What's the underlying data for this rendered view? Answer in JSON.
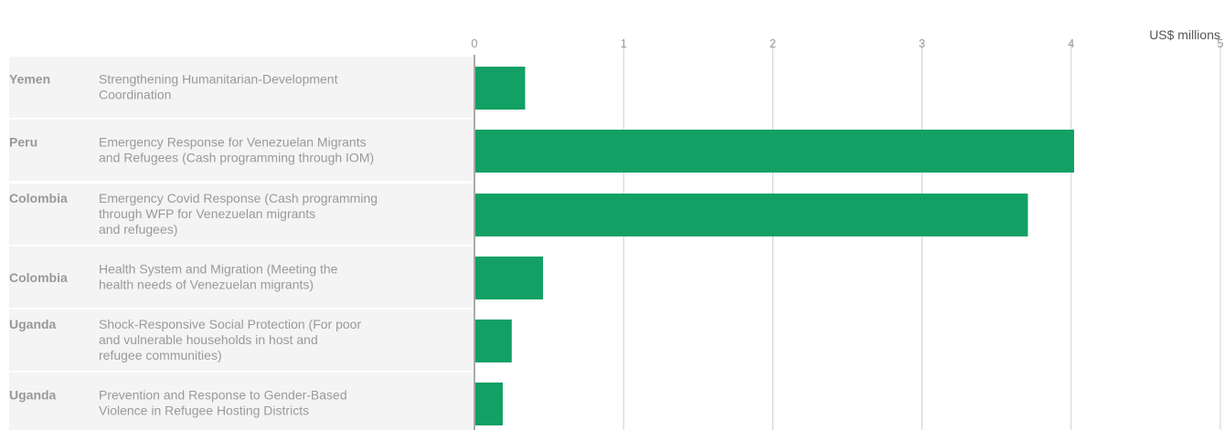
{
  "chart_data": {
    "type": "bar",
    "orientation": "horizontal",
    "unit": "US$ millions",
    "xlim": [
      0,
      5
    ],
    "xticks": [
      "0",
      "1",
      "2",
      "3",
      "4",
      "5"
    ],
    "grid": true,
    "bar_color": "#12a065",
    "row_band_color": "#f4f4f4",
    "categories": [
      {
        "country": "Yemen",
        "description_lines": [
          "Strengthening Humanitarian-Development",
          "Coordination"
        ],
        "value": 0.34
      },
      {
        "country": "Peru",
        "description_lines": [
          "Emergency Response for Venezuelan Migrants",
          "and Refugees (Cash programming through IOM)"
        ],
        "value": 4.02
      },
      {
        "country": "Colombia",
        "description_lines": [
          "Emergency Covid Response (Cash programming",
          "through WFP for Venezuelan migrants",
          "and refugees)"
        ],
        "value": 3.71
      },
      {
        "country": "Colombia",
        "description_lines": [
          "Health System and Migration (Meeting the",
          "health needs of Venezuelan migrants)"
        ],
        "value": 0.46
      },
      {
        "country": "Uganda",
        "description_lines": [
          "Shock-Responsive Social Protection (For poor",
          "and vulnerable households in host and",
          "refugee communities)"
        ],
        "value": 0.25
      },
      {
        "country": "Uganda",
        "description_lines": [
          "Prevention and Response to Gender-Based",
          "Violence in Refugee Hosting Districts"
        ],
        "value": 0.19
      }
    ]
  }
}
